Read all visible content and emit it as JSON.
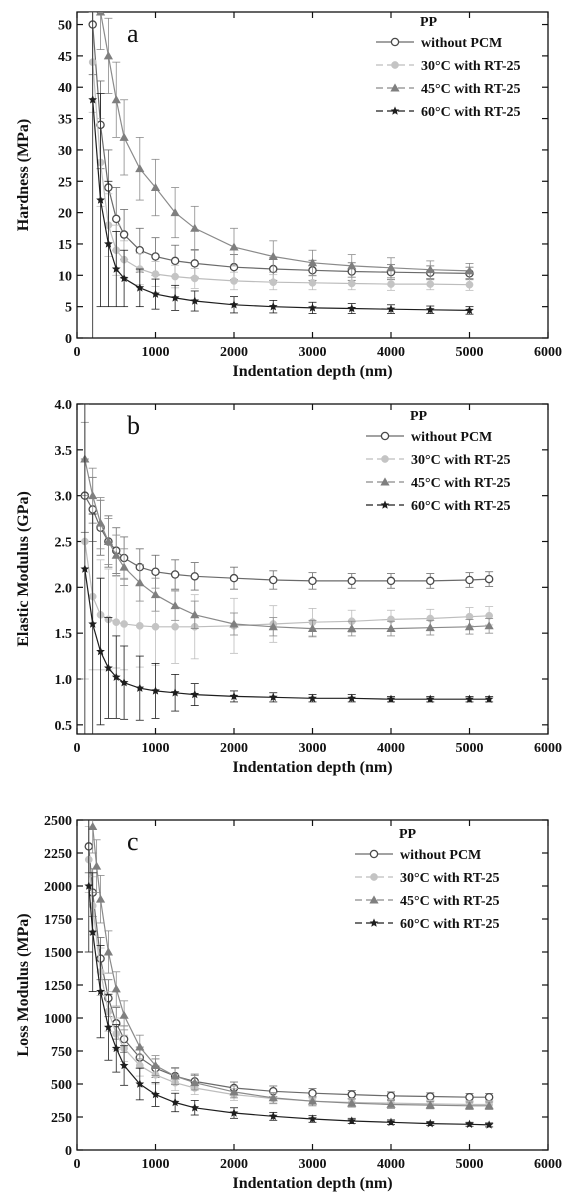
{
  "figure": {
    "series_styles": [
      {
        "marker": "circle-open",
        "color": "#4a4a4a",
        "line": "#6a6a6a"
      },
      {
        "marker": "circle-filled",
        "color": "#c4c4c4",
        "line": "#bdbdbd"
      },
      {
        "marker": "triangle-filled",
        "color": "#7f7f7f",
        "line": "#8a8a8a"
      },
      {
        "marker": "star-filled",
        "color": "#1e1e1e",
        "line": "#1e1e1e"
      }
    ]
  },
  "chart_data": [
    {
      "type": "line",
      "panel_label": "a",
      "xlabel": "Indentation depth (nm)",
      "ylabel": "Hardness (MPa)",
      "xlim": [
        0,
        6000
      ],
      "ylim": [
        0,
        52
      ],
      "xticks": [
        0,
        1000,
        2000,
        3000,
        4000,
        5000,
        6000
      ],
      "yticks": [
        0,
        5,
        10,
        15,
        20,
        25,
        30,
        35,
        40,
        45,
        50
      ],
      "legend": {
        "title": "PP",
        "placement": "top-right"
      },
      "series": [
        {
          "name": "without PCM",
          "x": [
            200,
            300,
            400,
            500,
            600,
            800,
            1000,
            1250,
            1500,
            2000,
            2500,
            3000,
            3500,
            4000,
            4500,
            5000
          ],
          "y": [
            50,
            34,
            24,
            19,
            16.5,
            14,
            13,
            12.3,
            11.9,
            11.3,
            11,
            10.8,
            10.6,
            10.5,
            10.4,
            10.3
          ],
          "err": [
            8,
            7,
            6,
            5,
            4,
            3.5,
            3,
            2.5,
            2.2,
            2,
            1.8,
            1.6,
            1.4,
            1.2,
            1.1,
            1
          ]
        },
        {
          "name": "30°C with RT-25",
          "x": [
            200,
            300,
            400,
            500,
            600,
            800,
            1000,
            1250,
            1500,
            2000,
            2500,
            3000,
            3500,
            4000,
            4500,
            5000
          ],
          "y": [
            44,
            28,
            18,
            14,
            12.5,
            11,
            10.2,
            9.8,
            9.5,
            9.1,
            8.9,
            8.8,
            8.7,
            8.6,
            8.6,
            8.5
          ],
          "err": [
            8,
            7,
            5,
            4,
            3,
            2.5,
            2,
            1.8,
            1.6,
            1.4,
            1.2,
            1.1,
            1,
            1,
            0.9,
            0.9
          ]
        },
        {
          "name": "45°C with RT-25",
          "x": [
            300,
            400,
            500,
            600,
            800,
            1000,
            1250,
            1500,
            2000,
            2500,
            3000,
            3500,
            4000,
            4500,
            5000
          ],
          "y": [
            52,
            45,
            38,
            32,
            27,
            24,
            20,
            17.5,
            14.5,
            13,
            12,
            11.5,
            11.2,
            10.9,
            10.7
          ],
          "err": [
            6,
            6,
            6,
            6,
            5,
            4.5,
            4,
            3.5,
            3,
            2.5,
            2,
            1.8,
            1.6,
            1.4,
            1.2
          ]
        },
        {
          "name": "60°C with RT-25",
          "x": [
            200,
            300,
            400,
            500,
            600,
            800,
            1000,
            1250,
            1500,
            2000,
            2500,
            3000,
            3500,
            4000,
            4500,
            5000
          ],
          "y": [
            38,
            22,
            15,
            11,
            9.5,
            8,
            7,
            6.4,
            5.9,
            5.3,
            5,
            4.8,
            4.7,
            4.6,
            4.5,
            4.4
          ],
          "err": [
            38,
            17,
            10,
            6,
            4.5,
            3,
            2.4,
            2,
            1.6,
            1.3,
            1,
            0.9,
            0.8,
            0.7,
            0.6,
            0.6
          ]
        }
      ]
    },
    {
      "type": "line",
      "panel_label": "b",
      "xlabel": "Indentation depth (nm)",
      "ylabel": "Elastic Modulus (GPa)",
      "xlim": [
        0,
        6000
      ],
      "ylim": [
        0.4,
        4.0
      ],
      "xticks": [
        0,
        1000,
        2000,
        3000,
        4000,
        5000,
        6000
      ],
      "yticks": [
        0.5,
        1.0,
        1.5,
        2.0,
        2.5,
        3.0,
        3.5,
        4.0
      ],
      "legend": {
        "title": "PP",
        "placement": "top-right"
      },
      "series": [
        {
          "name": "without PCM",
          "x": [
            100,
            200,
            300,
            400,
            500,
            600,
            800,
            1000,
            1250,
            1500,
            2000,
            2500,
            3000,
            3500,
            4000,
            4500,
            5000,
            5250
          ],
          "y": [
            3.0,
            2.85,
            2.65,
            2.5,
            2.4,
            2.32,
            2.22,
            2.17,
            2.14,
            2.12,
            2.1,
            2.08,
            2.07,
            2.07,
            2.07,
            2.07,
            2.08,
            2.09
          ],
          "err": [
            0.4,
            0.35,
            0.3,
            0.28,
            0.25,
            0.23,
            0.2,
            0.18,
            0.16,
            0.15,
            0.12,
            0.1,
            0.09,
            0.08,
            0.08,
            0.08,
            0.08,
            0.08
          ]
        },
        {
          "name": "30°C with RT-25",
          "x": [
            100,
            200,
            300,
            400,
            500,
            600,
            800,
            1000,
            1250,
            1500,
            2000,
            2500,
            3000,
            3500,
            4000,
            4500,
            5000,
            5250
          ],
          "y": [
            2.5,
            1.9,
            1.7,
            1.65,
            1.62,
            1.6,
            1.58,
            1.57,
            1.57,
            1.57,
            1.58,
            1.6,
            1.62,
            1.63,
            1.65,
            1.66,
            1.68,
            1.69
          ],
          "err": [
            1.5,
            0.8,
            0.6,
            0.55,
            0.5,
            0.5,
            0.45,
            0.42,
            0.4,
            0.35,
            0.3,
            0.2,
            0.15,
            0.12,
            0.1,
            0.1,
            0.1,
            0.1
          ]
        },
        {
          "name": "45°C with RT-25",
          "x": [
            100,
            200,
            300,
            400,
            500,
            600,
            800,
            1000,
            1250,
            1500,
            2000,
            2500,
            3000,
            3500,
            4000,
            4500,
            5000,
            5250
          ],
          "y": [
            3.4,
            3.0,
            2.7,
            2.5,
            2.35,
            2.22,
            2.05,
            1.92,
            1.8,
            1.7,
            1.6,
            1.57,
            1.55,
            1.55,
            1.55,
            1.56,
            1.57,
            1.58
          ],
          "err": [
            0.4,
            0.3,
            0.28,
            0.25,
            0.22,
            0.2,
            0.2,
            0.18,
            0.16,
            0.15,
            0.12,
            0.1,
            0.09,
            0.08,
            0.08,
            0.08,
            0.08,
            0.08
          ]
        },
        {
          "name": "60°C with RT-25",
          "x": [
            100,
            200,
            300,
            400,
            500,
            600,
            800,
            1000,
            1250,
            1500,
            2000,
            2500,
            3000,
            3500,
            4000,
            4500,
            5000,
            5250
          ],
          "y": [
            2.2,
            1.6,
            1.3,
            1.12,
            1.02,
            0.96,
            0.9,
            0.87,
            0.85,
            0.83,
            0.81,
            0.8,
            0.79,
            0.79,
            0.78,
            0.78,
            0.78,
            0.78
          ],
          "err": [
            1.8,
            1.2,
            0.8,
            0.55,
            0.45,
            0.4,
            0.35,
            0.3,
            0.2,
            0.12,
            0.06,
            0.05,
            0.04,
            0.04,
            0.03,
            0.03,
            0.03,
            0.03
          ]
        }
      ]
    },
    {
      "type": "line",
      "panel_label": "c",
      "xlabel": "Indentation depth (nm)",
      "ylabel": "Loss Modulus (MPa)",
      "xlim": [
        0,
        6000
      ],
      "ylim": [
        0,
        2500
      ],
      "xticks": [
        0,
        1000,
        2000,
        3000,
        4000,
        5000,
        6000
      ],
      "yticks": [
        0,
        250,
        500,
        750,
        1000,
        1250,
        1500,
        1750,
        2000,
        2250,
        2500
      ],
      "legend": {
        "title": "PP",
        "placement": "top-right"
      },
      "series": [
        {
          "name": "without PCM",
          "x": [
            150,
            200,
            300,
            400,
            500,
            600,
            800,
            1000,
            1250,
            1500,
            2000,
            2500,
            3000,
            3500,
            4000,
            4500,
            5000,
            5250
          ],
          "y": [
            2300,
            1950,
            1450,
            1150,
            960,
            840,
            700,
            620,
            560,
            520,
            470,
            445,
            430,
            420,
            410,
            405,
            400,
            400
          ],
          "err": [
            200,
            180,
            160,
            140,
            120,
            100,
            80,
            70,
            60,
            55,
            45,
            40,
            35,
            30,
            30,
            28,
            28,
            28
          ]
        },
        {
          "name": "30°C with RT-25",
          "x": [
            150,
            200,
            300,
            400,
            500,
            600,
            800,
            1000,
            1250,
            1500,
            2000,
            2500,
            3000,
            3500,
            4000,
            4500,
            5000,
            5250
          ],
          "y": [
            2200,
            1850,
            1350,
            1050,
            880,
            770,
            640,
            570,
            510,
            470,
            420,
            390,
            370,
            360,
            355,
            350,
            345,
            345
          ],
          "err": [
            250,
            220,
            180,
            150,
            120,
            100,
            80,
            70,
            60,
            50,
            45,
            40,
            35,
            30,
            30,
            28,
            28,
            28
          ]
        },
        {
          "name": "45°C with RT-25",
          "x": [
            200,
            250,
            300,
            400,
            500,
            600,
            800,
            1000,
            1250,
            1500,
            2000,
            2500,
            3000,
            3500,
            4000,
            4500,
            5000,
            5250
          ],
          "y": [
            2450,
            2150,
            1900,
            1500,
            1220,
            1020,
            780,
            640,
            560,
            510,
            440,
            395,
            370,
            355,
            345,
            340,
            335,
            335
          ],
          "err": [
            200,
            200,
            180,
            160,
            130,
            110,
            90,
            75,
            65,
            55,
            45,
            40,
            35,
            30,
            30,
            28,
            28,
            28
          ]
        },
        {
          "name": "60°C with RT-25",
          "x": [
            150,
            200,
            300,
            400,
            500,
            600,
            800,
            1000,
            1250,
            1500,
            2000,
            2500,
            3000,
            3500,
            4000,
            4500,
            5000,
            5250
          ],
          "y": [
            2000,
            1650,
            1200,
            930,
            770,
            640,
            500,
            420,
            360,
            320,
            280,
            255,
            235,
            220,
            210,
            200,
            195,
            190
          ],
          "err": [
            500,
            450,
            350,
            250,
            180,
            150,
            120,
            90,
            70,
            55,
            40,
            30,
            25,
            20,
            18,
            15,
            15,
            15
          ]
        }
      ]
    }
  ]
}
